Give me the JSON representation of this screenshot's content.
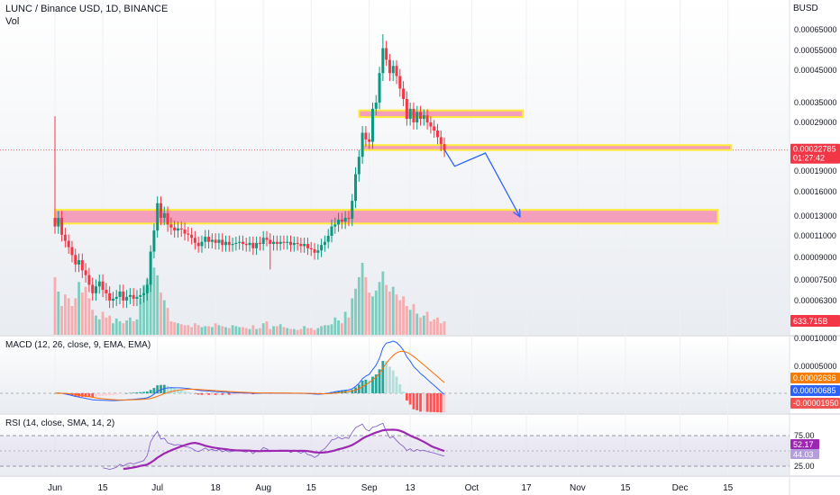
{
  "header": {
    "symbol_title": "LUNC / Binance USD, 1D, BINANCE",
    "vol_label": "Vol",
    "currency": "BUSD"
  },
  "macd": {
    "title": "MACD (12, 26, close, 9, EMA, EMA)",
    "badges": [
      {
        "text": "0.00002636",
        "color": "#f57c00"
      },
      {
        "text": "0.00000685",
        "color": "#2962ff"
      },
      {
        "text": "-0.00001950",
        "color": "#ef5350"
      }
    ],
    "axis_ticks": [
      "0.00010000",
      "0.00005000"
    ]
  },
  "rsi": {
    "title": "RSI (14, close, SMA, 14, 2)",
    "badges": [
      {
        "text": "52.17",
        "color": "#9c27b0"
      },
      {
        "text": "44.03",
        "color": "#b39ddb"
      }
    ],
    "axis_ticks": [
      "75.00",
      "25.00"
    ]
  },
  "price_badge": {
    "price": "0.00022785",
    "countdown": "01:27:42",
    "color": "#f23645"
  },
  "volume_badge": {
    "text": "633.715B",
    "color": "#f23645"
  },
  "chart_data": {
    "type": "candlestick",
    "title": "LUNC / Binance USD, 1D, BINANCE",
    "y_axis_ticks": [
      {
        "label": "0.00065000",
        "value": 0.00065
      },
      {
        "label": "0.00055000",
        "value": 0.00055
      },
      {
        "label": "0.00045000",
        "value": 0.00045
      },
      {
        "label": "0.00035000",
        "value": 0.00035
      },
      {
        "label": "0.00029000",
        "value": 0.00029
      },
      {
        "label": "0.00019000",
        "value": 0.00019
      },
      {
        "label": "0.00016000",
        "value": 0.00016
      },
      {
        "label": "0.00013000",
        "value": 0.00013
      },
      {
        "label": "0.00011000",
        "value": 0.00011
      },
      {
        "label": "0.00009000",
        "value": 9e-05
      },
      {
        "label": "0.00007500",
        "value": 7.5e-05
      },
      {
        "label": "0.00006300",
        "value": 6.3e-05
      }
    ],
    "x_axis_ticks": [
      {
        "label": "Jun",
        "day": 0
      },
      {
        "label": "15",
        "day": 14
      },
      {
        "label": "Jul",
        "day": 30
      },
      {
        "label": "18",
        "day": 47
      },
      {
        "label": "Aug",
        "day": 61
      },
      {
        "label": "15",
        "day": 75
      },
      {
        "label": "Sep",
        "day": 92
      },
      {
        "label": "13",
        "day": 104
      },
      {
        "label": "Oct",
        "day": 122
      },
      {
        "label": "17",
        "day": 138
      },
      {
        "label": "Nov",
        "day": 153
      },
      {
        "label": "15",
        "day": 167
      },
      {
        "label": "Dec",
        "day": 183
      },
      {
        "label": "15",
        "day": 197
      }
    ],
    "closes": [
      0.000119,
      0.000128,
      0.000111,
      0.000105,
      9.9e-05,
      9.2e-05,
      8.5e-05,
      8.8e-05,
      8.1e-05,
      7.8e-05,
      7.2e-05,
      6.7e-05,
      7.1e-05,
      7.4e-05,
      6.9e-05,
      6.7e-05,
      6.3e-05,
      6.4e-05,
      6.5e-05,
      6.8e-05,
      6.3e-05,
      6.5e-05,
      6.6e-05,
      6.4e-05,
      6.5e-05,
      6.6e-05,
      6.7e-05,
      7.2e-05,
      9.5e-05,
      0.000115,
      0.000145,
      0.000128,
      0.000133,
      0.000121,
      0.000118,
      0.000115,
      0.000117,
      0.000116,
      0.000112,
      0.000111,
      0.000108,
      0.000103,
      0.0001,
      0.000104,
      0.000109,
      0.000104,
      0.000106,
      0.000103,
      0.000106,
      0.000101,
      0.000104,
      0.000101,
      0.000102,
      0.000103,
      0.000104,
      0.000102,
      0.000101,
      0.000103,
      9.8e-05,
      0.000103,
      0.000102,
      0.000108,
      0.000106,
      0.000102,
      0.000104,
      0.000102,
      0.000104,
      0.000103,
      0.000104,
      0.000101,
      0.000103,
      0.000102,
      0.0001,
      0.000102,
      9.8e-05,
      9.7e-05,
      9.4e-05,
      9.6e-05,
      0.000101,
      0.000104,
      0.00011,
      0.000119,
      0.000121,
      0.000126,
      0.000124,
      0.000128,
      0.000127,
      0.000148,
      0.000185,
      0.000215,
      0.000265,
      0.00025,
      0.000245,
      0.00033,
      0.00035,
      0.00044,
      0.00056,
      0.0005,
      0.00044,
      0.00047,
      0.00043,
      0.00039,
      0.00036,
      0.0003,
      0.00033,
      0.00029,
      0.00032,
      0.0003,
      0.00031,
      0.00029,
      0.00028,
      0.00027,
      0.000255,
      0.00024,
      0.000228
    ],
    "first_open": 0.000128,
    "volumes": [
      60,
      45,
      30,
      42,
      38,
      30,
      38,
      55,
      44,
      50,
      38,
      26,
      20,
      16,
      24,
      18,
      20,
      12,
      17,
      14,
      12,
      15,
      18,
      14,
      16,
      38,
      52,
      58,
      62,
      70,
      62,
      44,
      36,
      28,
      14,
      13,
      12,
      11,
      10,
      10,
      8,
      12,
      10,
      8,
      9,
      9,
      8,
      12,
      10,
      9,
      8,
      7,
      10,
      9,
      8,
      8,
      7,
      6,
      10,
      6,
      7,
      12,
      14,
      6,
      9,
      9,
      11,
      8,
      7,
      6,
      6,
      5,
      6,
      9,
      7,
      7,
      5,
      7,
      9,
      10,
      10,
      11,
      18,
      15,
      12,
      24,
      18,
      38,
      48,
      60,
      75,
      60,
      44,
      40,
      46,
      55,
      66,
      52,
      45,
      50,
      42,
      36,
      40,
      30,
      26,
      32,
      22,
      18,
      20,
      24,
      14,
      16,
      18,
      12,
      14
    ],
    "volume_series_name": "Vol",
    "zones": [
      {
        "name": "upper-resistance-zone",
        "from_day": 89,
        "to_day": 137,
        "top": 0.000325,
        "bottom": 0.000305
      },
      {
        "name": "current-support-zone",
        "from_day": 90,
        "to_day": 198,
        "top": 0.000238,
        "bottom": 0.000228
      },
      {
        "name": "lower-support-zone",
        "from_day": 0,
        "to_day": 194,
        "top": 0.000137,
        "bottom": 0.000122
      }
    ],
    "projection_path": [
      {
        "day": 114,
        "value": 0.000229
      },
      {
        "day": 117,
        "value": 0.000198
      },
      {
        "day": 126,
        "value": 0.000222
      },
      {
        "day": 136,
        "value": 0.00013
      }
    ],
    "zone_fill_color": "#f48fb1",
    "zone_border_color": "#ffeb3b",
    "projection_color": "#2962ff",
    "up_color": "#089981",
    "down_color": "#f23645"
  }
}
